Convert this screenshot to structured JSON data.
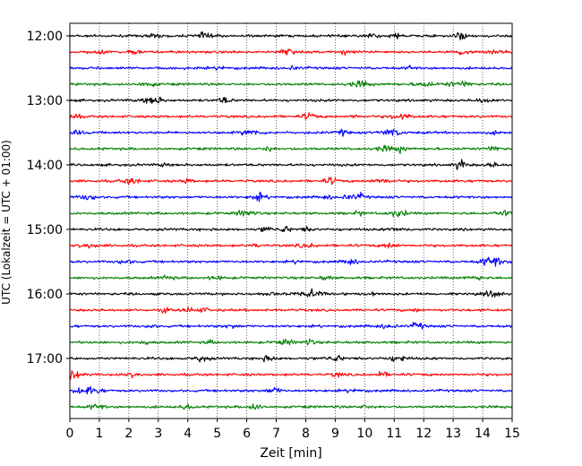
{
  "chart_data": {
    "type": "line",
    "title": "",
    "xlabel": "Zeit  [min]",
    "ylabel": "UTC (Lokalzeit = UTC + 01:00)",
    "xlim": [
      0,
      15
    ],
    "x_ticks": [
      "0",
      "1",
      "2",
      "3",
      "4",
      "5",
      "6",
      "7",
      "8",
      "9",
      "10",
      "11",
      "12",
      "13",
      "14",
      "15"
    ],
    "y_tick_labels": [
      "12:00",
      "13:00",
      "14:00",
      "15:00",
      "16:00",
      "17:00"
    ],
    "trace_start_times": [
      "12:00",
      "12:15",
      "12:30",
      "12:45",
      "13:00",
      "13:15",
      "13:30",
      "13:45",
      "14:00",
      "14:15",
      "14:30",
      "14:45",
      "15:00",
      "15:15",
      "15:30",
      "15:45",
      "16:00",
      "16:15",
      "16:30",
      "16:45",
      "17:00",
      "17:15",
      "17:30",
      "17:45"
    ],
    "trace_colors": [
      "#000000",
      "#ff0000",
      "#0000ff",
      "#008000"
    ],
    "vertical_grid": true,
    "grid_style": "dotted",
    "legend": "none"
  }
}
